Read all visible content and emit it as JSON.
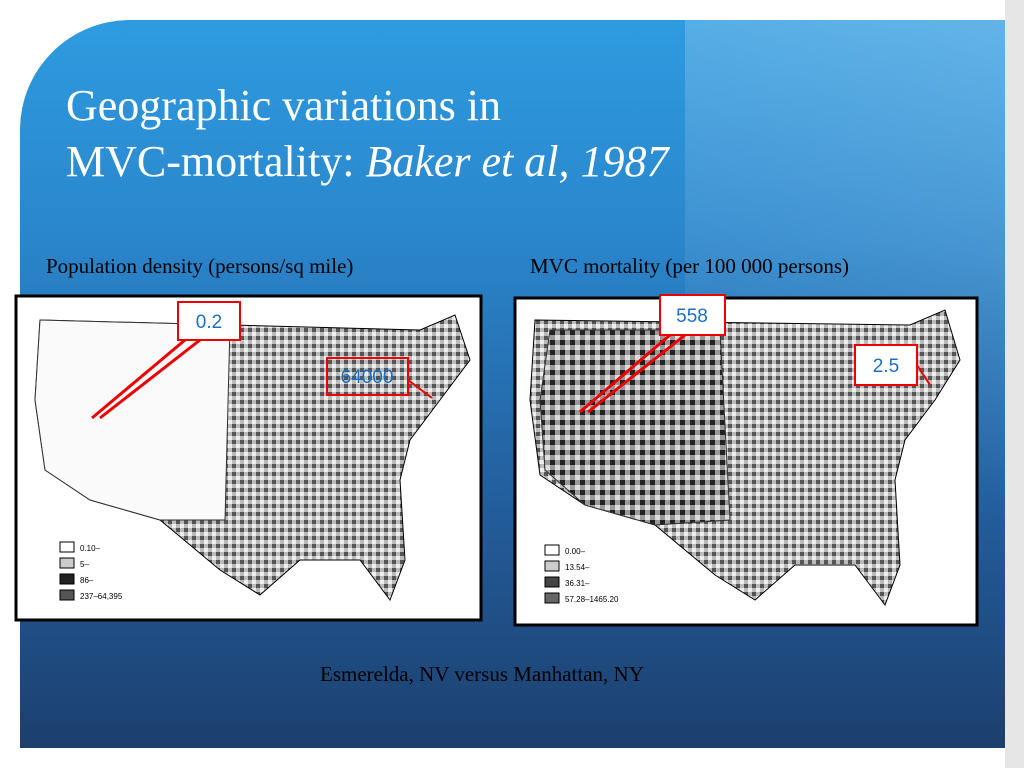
{
  "slide": {
    "title": {
      "line1": "Geographic variations in",
      "line2": "MVC-mortality:",
      "citation": "Baker et al, 1987"
    },
    "left_panel": {
      "heading": "Population density (persons/sq mile)",
      "callouts": [
        "0.2",
        "64000"
      ],
      "legend": [
        "0.10–",
        "5–",
        "86–",
        "237–64,395"
      ]
    },
    "right_panel": {
      "heading": "MVC mortality (per 100 000 persons)",
      "callouts": [
        "558",
        "2.5"
      ],
      "legend": [
        "0.00–",
        "13.54–",
        "36.31–",
        "57.28–1465.20"
      ]
    },
    "caption": "Esmerelda, NV versus Manhattan, NY"
  }
}
